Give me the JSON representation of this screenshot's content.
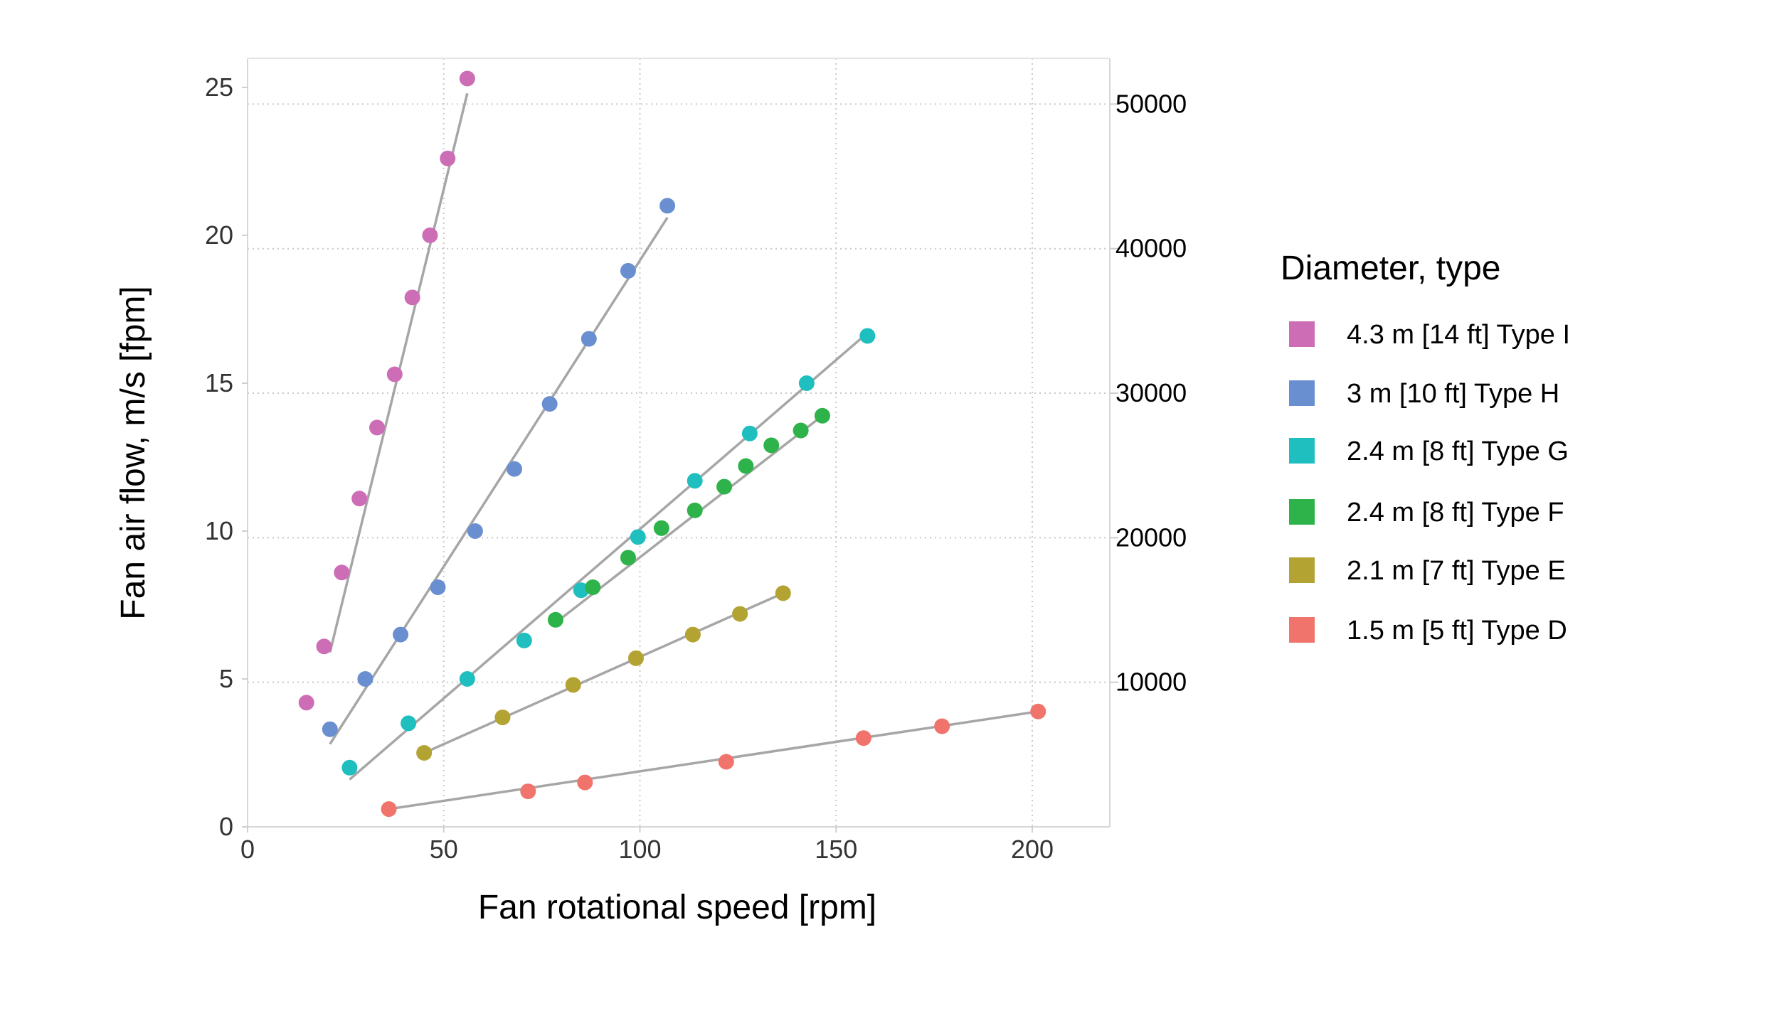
{
  "chart_data": {
    "type": "scatter",
    "xlabel": "Fan rotational speed [rpm]",
    "ylabel": "Fan air flow, m/s [fpm]",
    "xlim": [
      0,
      220
    ],
    "ylim": [
      0,
      25.5
    ],
    "xticks": [
      0,
      50,
      100,
      150,
      200
    ],
    "yticks": [
      0,
      5,
      10,
      15,
      20,
      25
    ],
    "y2_ticks": [
      10000,
      20000,
      30000,
      40000,
      50000
    ],
    "y2_per_y": 2046,
    "grid": true,
    "legend_position": "right",
    "legend_title": "Diameter, type",
    "series": [
      {
        "name": "4.3 m [14 ft] Type I",
        "color": "#cc6db5",
        "x": [
          15,
          19.5,
          24,
          28.5,
          33,
          37.5,
          42,
          46.5,
          51,
          56
        ],
        "y": [
          4.2,
          6.1,
          8.6,
          11.1,
          13.5,
          15.3,
          17.9,
          20.0,
          22.6,
          25.3
        ],
        "fit": [
          [
            21,
            5.9
          ],
          [
            56,
            24.8
          ]
        ]
      },
      {
        "name": "3 m [10 ft] Type H",
        "color": "#6a8fd0",
        "x": [
          21,
          30,
          39,
          48.5,
          58,
          68,
          77,
          87,
          97,
          107
        ],
        "y": [
          3.3,
          5.0,
          6.5,
          8.1,
          10.0,
          12.1,
          14.3,
          16.5,
          18.8,
          21.0
        ],
        "fit": [
          [
            21,
            2.8
          ],
          [
            107,
            20.6
          ]
        ]
      },
      {
        "name": "2.4 m [8 ft] Type G",
        "color": "#1fbfbf",
        "x": [
          26,
          41,
          56,
          70.5,
          85,
          99.5,
          114,
          128,
          142.5,
          158
        ],
        "y": [
          2.0,
          3.5,
          5.0,
          6.3,
          8.0,
          9.8,
          11.7,
          13.3,
          15.0,
          16.6
        ],
        "fit": [
          [
            26,
            1.6
          ],
          [
            158,
            16.7
          ]
        ]
      },
      {
        "name": "2.4 m [8 ft] Type F",
        "color": "#2db34a",
        "x": [
          78.5,
          88,
          97,
          105.5,
          114,
          121.5,
          127,
          133.5,
          141,
          146.5
        ],
        "y": [
          7.0,
          8.1,
          9.1,
          10.1,
          10.7,
          11.5,
          12.2,
          12.9,
          13.4,
          13.9
        ],
        "fit": [
          [
            78.5,
            6.9
          ],
          [
            146.5,
            13.9
          ]
        ]
      },
      {
        "name": "2.1 m [7 ft] Type E",
        "color": "#b3a332",
        "x": [
          45,
          65,
          83,
          99,
          113.5,
          125.5,
          136.5
        ],
        "y": [
          2.5,
          3.7,
          4.8,
          5.7,
          6.5,
          7.2,
          7.9
        ],
        "fit": [
          [
            45,
            2.5
          ],
          [
            136.5,
            7.9
          ]
        ]
      },
      {
        "name": "1.5 m [5 ft] Type D",
        "color": "#f0736c",
        "x": [
          36,
          71.5,
          86,
          122,
          157,
          177,
          201.5
        ],
        "y": [
          0.6,
          1.2,
          1.5,
          2.2,
          3.0,
          3.4,
          3.9
        ],
        "fit": [
          [
            36,
            0.6
          ],
          [
            201.5,
            3.9
          ]
        ]
      }
    ]
  }
}
